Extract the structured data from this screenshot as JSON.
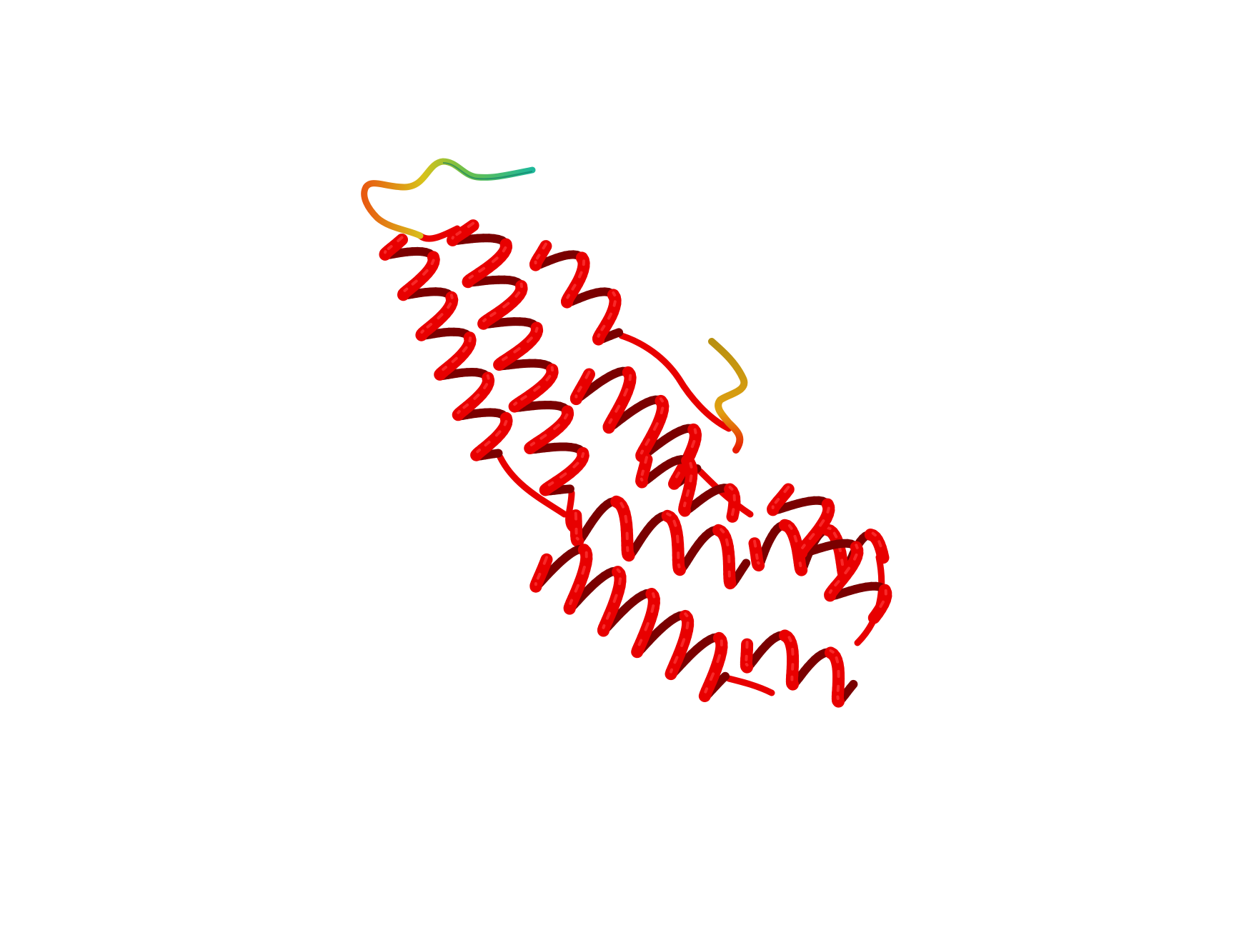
{
  "scene": {
    "subject": "protein-ribbon-structure",
    "background_color": "#ffffff",
    "colors": {
      "helix": "#e80000",
      "helix_dark": "#7a0000",
      "helix_highlight": "#ff3a3a",
      "terminus_teal": "#1fb89a",
      "terminus_yellow": "#d8c21a",
      "terminus_orange": "#ee6a10"
    }
  }
}
